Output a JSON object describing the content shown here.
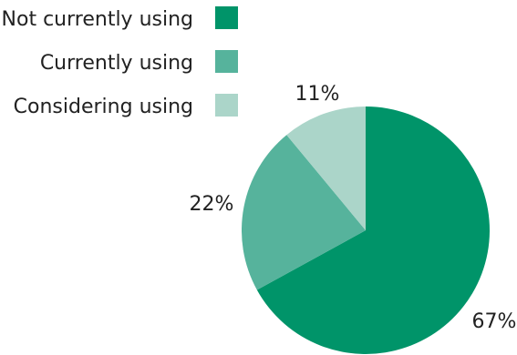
{
  "chart_data": {
    "type": "pie",
    "title": "",
    "slices": [
      {
        "label": "Not currently using",
        "value": 67,
        "display": "67%",
        "color": "#009469"
      },
      {
        "label": "Currently using",
        "value": 22,
        "display": "22%",
        "color": "#56b39c"
      },
      {
        "label": "Considering using",
        "value": 11,
        "display": "11%",
        "color": "#abd5c9"
      }
    ],
    "legend": {
      "position": "top-left"
    }
  }
}
